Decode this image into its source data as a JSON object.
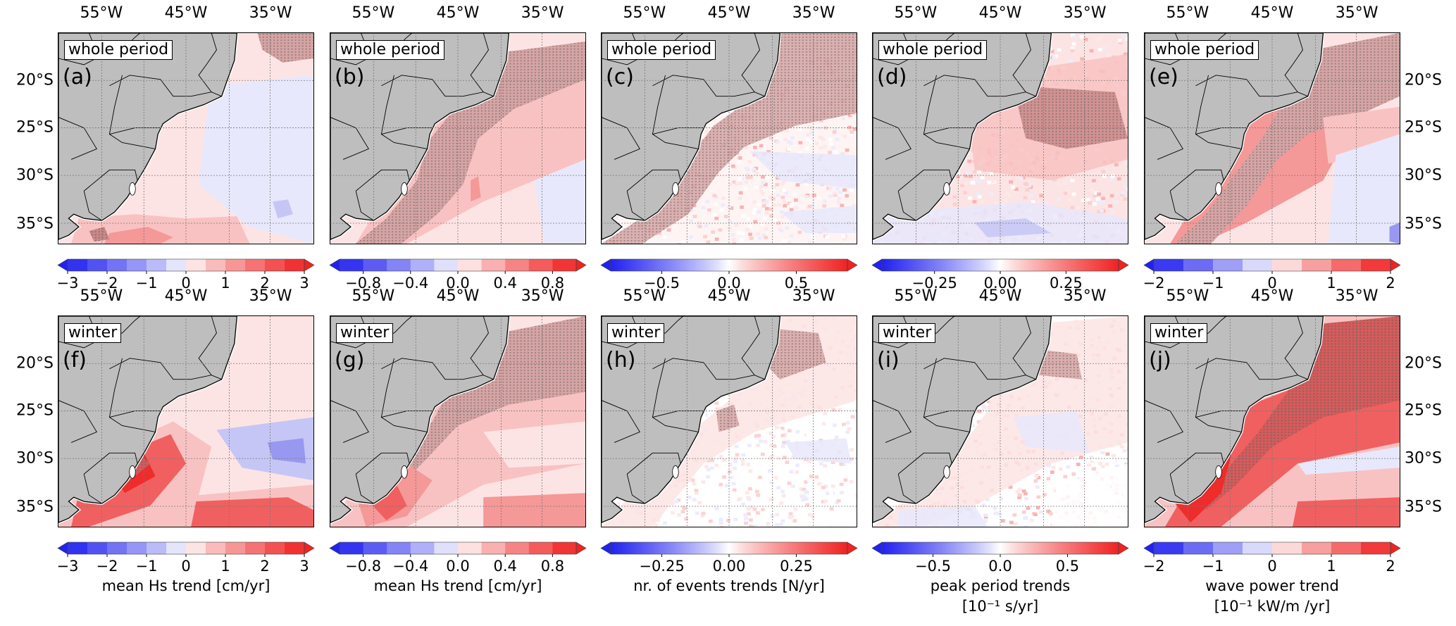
{
  "axes": {
    "lon_ticks": [
      "55°W",
      "45°W",
      "35°W"
    ],
    "lat_ticks": [
      "20°S",
      "25°S",
      "30°S",
      "35°S"
    ]
  },
  "colors": {
    "negative": "#2222f0",
    "positive": "#f02222",
    "land": "#bebebe",
    "coast": "#000000"
  },
  "panels": [
    {
      "letter": "(a)",
      "period": "whole period"
    },
    {
      "letter": "(b)",
      "period": "whole period"
    },
    {
      "letter": "(c)",
      "period": "whole period"
    },
    {
      "letter": "(d)",
      "period": "whole period"
    },
    {
      "letter": "(e)",
      "period": "whole period"
    },
    {
      "letter": "(f)",
      "period": "winter"
    },
    {
      "letter": "(g)",
      "period": "winter"
    },
    {
      "letter": "(h)",
      "period": "winter"
    },
    {
      "letter": "(i)",
      "period": "winter"
    },
    {
      "letter": "(j)",
      "period": "winter"
    }
  ],
  "colorbars": [
    {
      "type": "discrete",
      "range": [
        -3,
        3
      ],
      "bins": 12,
      "ticks": [
        -3,
        -2,
        -1,
        0,
        1,
        2,
        3
      ],
      "tick_labels": [
        "−3",
        "−2",
        "−1",
        "0",
        "1",
        "2",
        "3"
      ],
      "label": "",
      "label2": ""
    },
    {
      "type": "discrete",
      "range": [
        -1,
        1
      ],
      "bins": 10,
      "ticks": [
        -0.8,
        -0.4,
        0,
        0.4,
        0.8
      ],
      "tick_labels": [
        "−0.8",
        "−0.4",
        "0.0",
        "0.4",
        "0.8"
      ],
      "label": "",
      "label2": ""
    },
    {
      "type": "continuous",
      "range": [
        -0.88,
        0.88
      ],
      "ticks": [
        -0.5,
        0,
        0.5
      ],
      "tick_labels": [
        "−0.5",
        "0.0",
        "0.5"
      ],
      "label": "",
      "label2": ""
    },
    {
      "type": "continuous",
      "range": [
        -0.45,
        0.45
      ],
      "ticks": [
        -0.25,
        0,
        0.25
      ],
      "tick_labels": [
        "−0.25",
        "0.00",
        "0.25"
      ],
      "label": "",
      "label2": ""
    },
    {
      "type": "discrete",
      "range": [
        -2,
        2
      ],
      "bins": 8,
      "ticks": [
        -2,
        -1,
        0,
        1,
        2
      ],
      "tick_labels": [
        "−2",
        "−1",
        "0",
        "1",
        "2"
      ],
      "label": "",
      "label2": ""
    },
    {
      "type": "discrete",
      "range": [
        -3,
        3
      ],
      "bins": 12,
      "ticks": [
        -3,
        -2,
        -1,
        0,
        1,
        2,
        3
      ],
      "tick_labels": [
        "−3",
        "−2",
        "−1",
        "0",
        "1",
        "2",
        "3"
      ],
      "label": "mean Hs trend [cm/yr]",
      "label2": ""
    },
    {
      "type": "discrete",
      "range": [
        -1,
        1
      ],
      "bins": 10,
      "ticks": [
        -0.8,
        -0.4,
        0,
        0.4,
        0.8
      ],
      "tick_labels": [
        "−0.8",
        "−0.4",
        "0.0",
        "0.4",
        "0.8"
      ],
      "label": "mean Hs trend [cm/yr]",
      "label2": ""
    },
    {
      "type": "continuous",
      "range": [
        -0.44,
        0.44
      ],
      "ticks": [
        -0.25,
        0,
        0.25
      ],
      "tick_labels": [
        "−0.25",
        "0.00",
        "0.25"
      ],
      "label": "nr. of events trends [N/yr]",
      "label2": ""
    },
    {
      "type": "continuous",
      "range": [
        -0.88,
        0.88
      ],
      "ticks": [
        -0.5,
        0,
        0.5
      ],
      "tick_labels": [
        "−0.5",
        "0.0",
        "0.5"
      ],
      "label": "peak period trends",
      "label2": "[10⁻¹ s/yr]"
    },
    {
      "type": "discrete",
      "range": [
        -2,
        2
      ],
      "bins": 8,
      "ticks": [
        -2,
        -1,
        0,
        1,
        2
      ],
      "tick_labels": [
        "−2",
        "−1",
        "0",
        "1",
        "2"
      ],
      "label": "wave power trend",
      "label2": "[10⁻¹ kW/m /yr]"
    }
  ]
}
